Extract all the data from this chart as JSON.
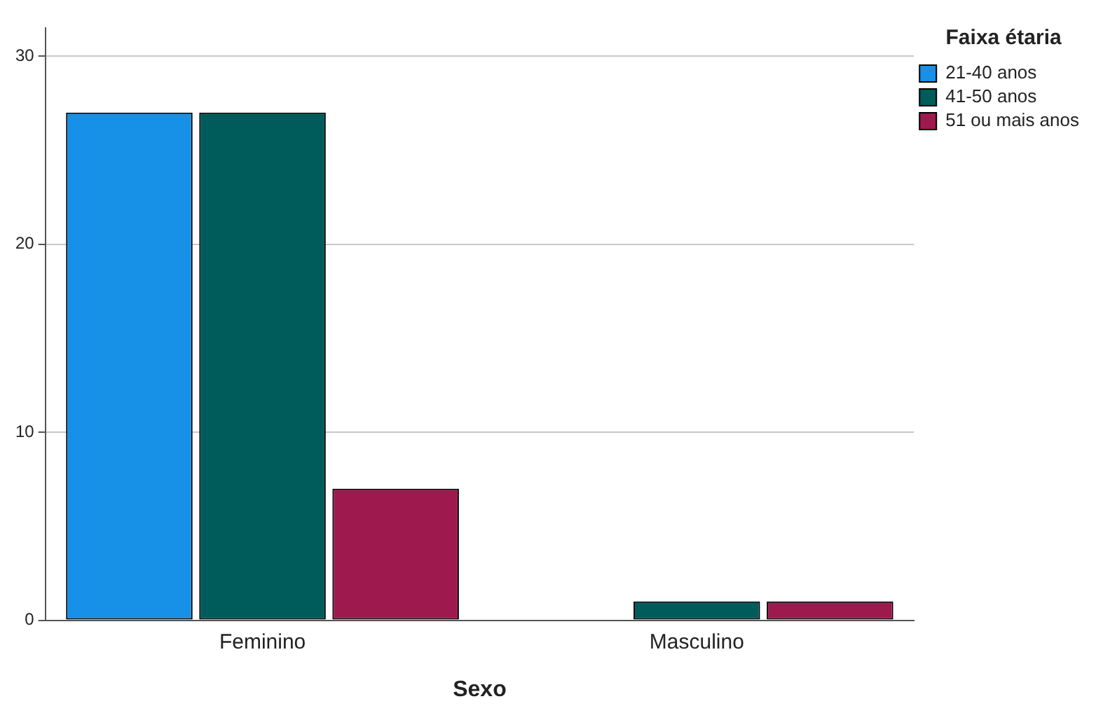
{
  "chart_data": {
    "type": "bar",
    "xlabel": "Sexo",
    "legend_title": "Faixa étaria",
    "categories": [
      "Feminino",
      "Masculino"
    ],
    "series": [
      {
        "name": "21-40 anos",
        "color": "#1790e8",
        "values": [
          27,
          0
        ]
      },
      {
        "name": "41-50 anos",
        "color": "#005b5b",
        "values": [
          27,
          1
        ]
      },
      {
        "name": "51 ou mais anos",
        "color": "#9e1a4e",
        "values": [
          7,
          1
        ]
      }
    ],
    "ylim": [
      0,
      31.5
    ],
    "yticks": [
      0,
      10,
      20,
      30
    ],
    "grid": "y",
    "legend": "top right"
  }
}
